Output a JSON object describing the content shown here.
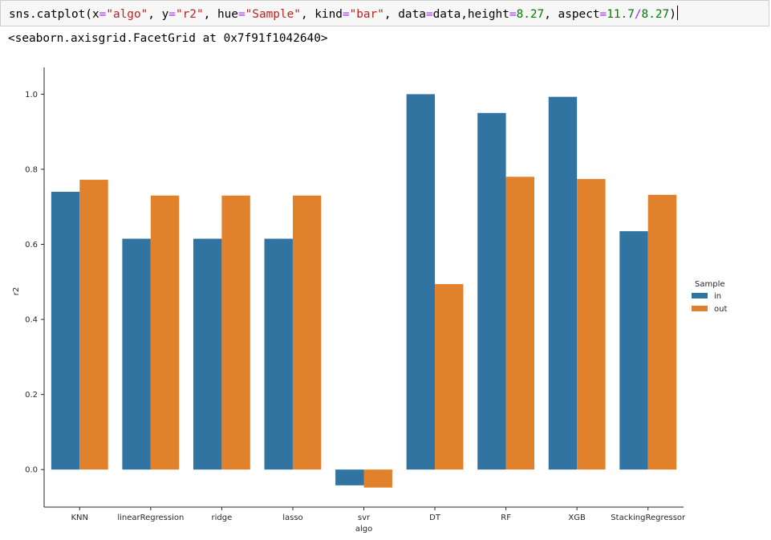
{
  "cell": {
    "code_tokens": [
      {
        "t": "sns.catplot(x",
        "c": ""
      },
      {
        "t": "=",
        "c": "op"
      },
      {
        "t": "\"algo\"",
        "c": "str"
      },
      {
        "t": ", y",
        "c": ""
      },
      {
        "t": "=",
        "c": "op"
      },
      {
        "t": "\"r2\"",
        "c": "str"
      },
      {
        "t": ", hue",
        "c": ""
      },
      {
        "t": "=",
        "c": "op"
      },
      {
        "t": "\"Sample\"",
        "c": "str"
      },
      {
        "t": ", kind",
        "c": ""
      },
      {
        "t": "=",
        "c": "op"
      },
      {
        "t": "\"bar\"",
        "c": "str"
      },
      {
        "t": ", data",
        "c": ""
      },
      {
        "t": "=",
        "c": "op"
      },
      {
        "t": "data,height",
        "c": ""
      },
      {
        "t": "=",
        "c": "op"
      },
      {
        "t": "8.27",
        "c": "num"
      },
      {
        "t": ", aspect",
        "c": ""
      },
      {
        "t": "=",
        "c": "op"
      },
      {
        "t": "11.7",
        "c": "num"
      },
      {
        "t": "/",
        "c": "op"
      },
      {
        "t": "8.27",
        "c": "num"
      },
      {
        "t": ")",
        "c": ""
      }
    ],
    "output": "<seaborn.axisgrid.FacetGrid at 0x7f91f1042640>"
  },
  "colors": {
    "in": "#3274a1",
    "out": "#e1812c"
  },
  "chart_data": {
    "type": "bar",
    "xlabel": "algo",
    "ylabel": "r2",
    "ylim": [
      -0.1,
      1.05
    ],
    "yticks": [
      "0.0",
      "0.2",
      "0.4",
      "0.6",
      "0.8",
      "1.0"
    ],
    "categories": [
      "KNN",
      "linearRegression",
      "ridge",
      "lasso",
      "svr",
      "DT",
      "RF",
      "XGB",
      "StackingRegressor"
    ],
    "legend_title": "Sample",
    "legend_position": "right",
    "series": [
      {
        "name": "in",
        "values": [
          0.74,
          0.615,
          0.615,
          0.615,
          -0.042,
          1.0,
          0.95,
          0.993,
          0.635
        ]
      },
      {
        "name": "out",
        "values": [
          0.772,
          0.73,
          0.73,
          0.73,
          -0.048,
          0.494,
          0.78,
          0.774,
          0.732
        ]
      }
    ]
  }
}
